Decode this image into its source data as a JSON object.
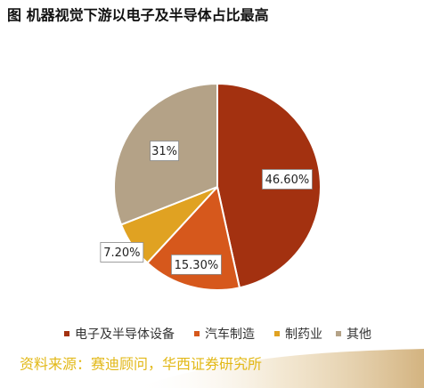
{
  "chart_data": {
    "type": "pie",
    "title": "图  机器视觉下游以电子及半导体占比最高",
    "categories": [
      "电子及半导体设备",
      "汽车制造",
      "制药业",
      "其他"
    ],
    "values": [
      46.6,
      15.3,
      7.2,
      31
    ],
    "value_labels": [
      "46.60%",
      "15.30%",
      "7.20%",
      "31%"
    ],
    "colors": [
      "#a33110",
      "#d6581c",
      "#e0a222",
      "#b4a287"
    ],
    "source": "资料来源：赛迪顾问，华西证券研究所"
  }
}
